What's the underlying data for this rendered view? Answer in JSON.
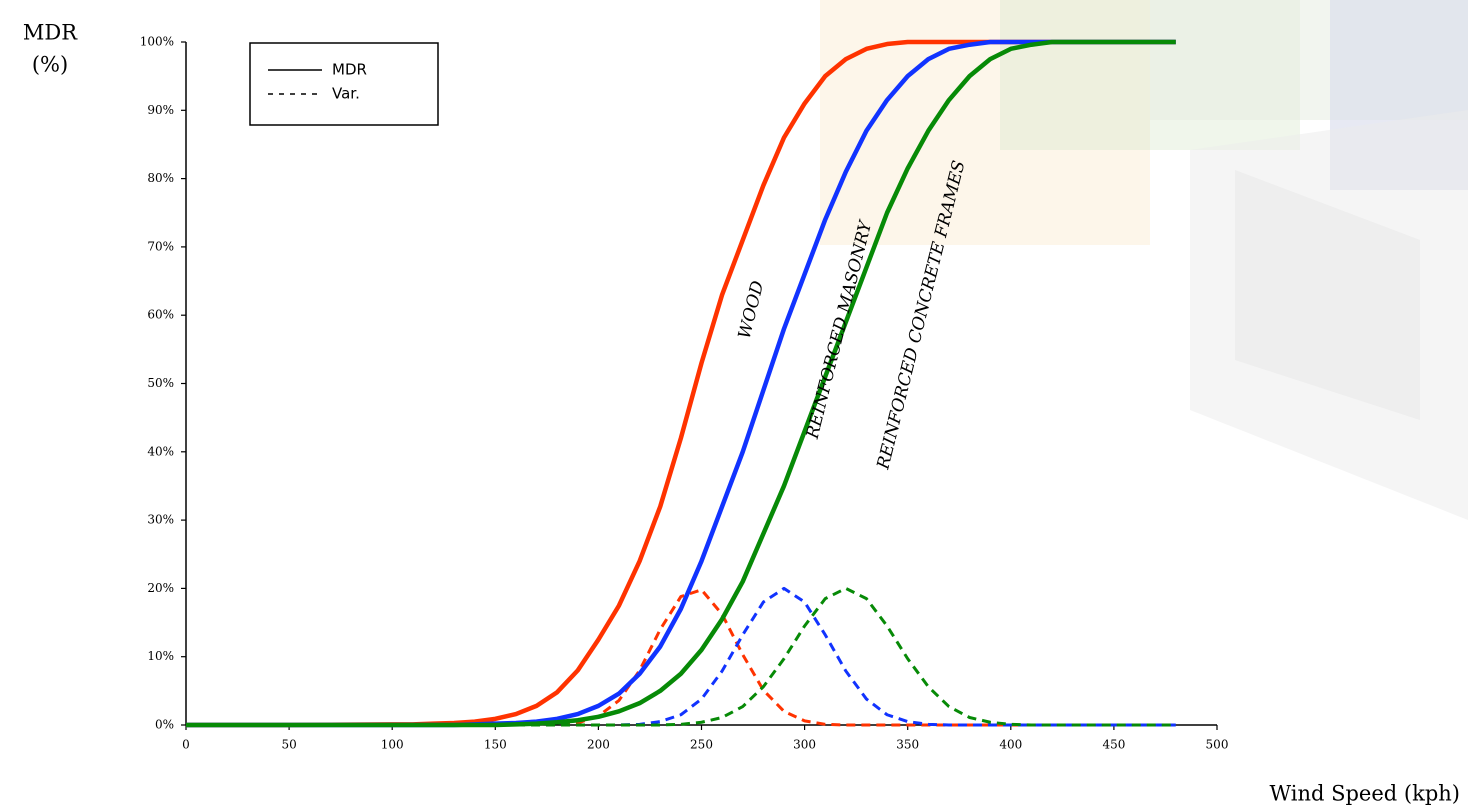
{
  "chart_data": {
    "type": "line",
    "y_label_lines": [
      "MDR",
      "(%)"
    ],
    "x_label": "Wind Speed (kph)",
    "xlim": [
      0,
      500
    ],
    "xticks": [
      0,
      50,
      100,
      150,
      200,
      250,
      300,
      350,
      400,
      450,
      500
    ],
    "ylim": [
      0,
      100
    ],
    "yticks": [
      {
        "value": 0,
        "label": "0%"
      },
      {
        "value": 10,
        "label": "10%"
      },
      {
        "value": 20,
        "label": "20%"
      },
      {
        "value": 30,
        "label": "30%"
      },
      {
        "value": 40,
        "label": "40%"
      },
      {
        "value": 50,
        "label": "50%"
      },
      {
        "value": 60,
        "label": "60%"
      },
      {
        "value": 70,
        "label": "70%"
      },
      {
        "value": 80,
        "label": "80%"
      },
      {
        "value": 90,
        "label": "90%"
      },
      {
        "value": 100,
        "label": "100%"
      }
    ],
    "legend": [
      {
        "label": "MDR",
        "dashed": false
      },
      {
        "label": "Var.",
        "dashed": true
      }
    ],
    "annotations": [
      "WOOD",
      "REINFORCED MASONRY",
      "REINFORCED CONCRETE FRAMES"
    ],
    "x": [
      0,
      50,
      100,
      110,
      120,
      130,
      140,
      150,
      160,
      170,
      180,
      190,
      200,
      210,
      220,
      230,
      240,
      250,
      260,
      270,
      280,
      290,
      300,
      310,
      320,
      330,
      340,
      350,
      360,
      370,
      380,
      390,
      400,
      410,
      420,
      430,
      440,
      450,
      460,
      470,
      480
    ],
    "series": [
      {
        "color": "#ff3300",
        "dashed": false,
        "values": [
          0,
          0,
          0.1,
          0.1,
          0.2,
          0.3,
          0.5,
          0.9,
          1.6,
          2.8,
          4.8,
          8,
          12.5,
          17.5,
          24,
          32,
          42,
          53,
          63,
          71,
          79,
          86,
          91,
          95,
          97.5,
          99,
          99.7,
          100,
          100,
          100,
          100,
          100,
          100,
          100,
          100,
          100,
          100,
          100,
          100,
          100,
          100
        ]
      },
      {
        "color": "#1133ff",
        "dashed": false,
        "values": [
          0,
          0,
          0,
          0,
          0,
          0,
          0.1,
          0.2,
          0.3,
          0.5,
          0.9,
          1.6,
          2.8,
          4.6,
          7.5,
          11.5,
          17,
          24,
          32,
          40,
          49,
          58,
          66,
          74,
          81,
          87,
          91.5,
          95,
          97.5,
          99,
          99.6,
          100,
          100,
          100,
          100,
          100,
          100,
          100,
          100,
          100,
          100
        ]
      },
      {
        "color": "#078a07",
        "dashed": false,
        "values": [
          0,
          0,
          0,
          0,
          0,
          0,
          0,
          0,
          0.1,
          0.2,
          0.4,
          0.7,
          1.2,
          2,
          3.2,
          5,
          7.5,
          11,
          15.5,
          21,
          28,
          35,
          43,
          51,
          59,
          67,
          75,
          81.5,
          87,
          91.5,
          95,
          97.5,
          99,
          99.6,
          100,
          100,
          100,
          100,
          100,
          100,
          100
        ]
      },
      {
        "color": "#ff3300",
        "dashed": true,
        "values": [
          0,
          0,
          0,
          0,
          0,
          0,
          0,
          0,
          0,
          0,
          0.1,
          0.3,
          1.3,
          3.6,
          8,
          14,
          18.8,
          19.8,
          16.2,
          10.3,
          5.1,
          2,
          0.6,
          0.1,
          0,
          0,
          0,
          0,
          0,
          0,
          0,
          0,
          0,
          0,
          0,
          0,
          0,
          0,
          0,
          0,
          0
        ]
      },
      {
        "color": "#1133ff",
        "dashed": true,
        "values": [
          0,
          0,
          0,
          0,
          0,
          0,
          0,
          0,
          0,
          0,
          0,
          0,
          0,
          0,
          0.1,
          0.5,
          1.5,
          3.8,
          7.9,
          13.2,
          18,
          20,
          18,
          13.2,
          7.9,
          3.8,
          1.5,
          0.5,
          0.1,
          0,
          0,
          0,
          0,
          0,
          0,
          0,
          0,
          0,
          0,
          0,
          0
        ]
      },
      {
        "color": "#078a07",
        "dashed": true,
        "values": [
          0,
          0,
          0,
          0,
          0,
          0,
          0,
          0,
          0,
          0,
          0,
          0,
          0,
          0,
          0,
          0,
          0.1,
          0.4,
          1.1,
          2.7,
          5.6,
          9.7,
          14.5,
          18.5,
          20,
          18.5,
          14.5,
          9.7,
          5.6,
          2.7,
          1.1,
          0.4,
          0.1,
          0,
          0,
          0,
          0,
          0,
          0,
          0,
          0
        ]
      }
    ]
  }
}
